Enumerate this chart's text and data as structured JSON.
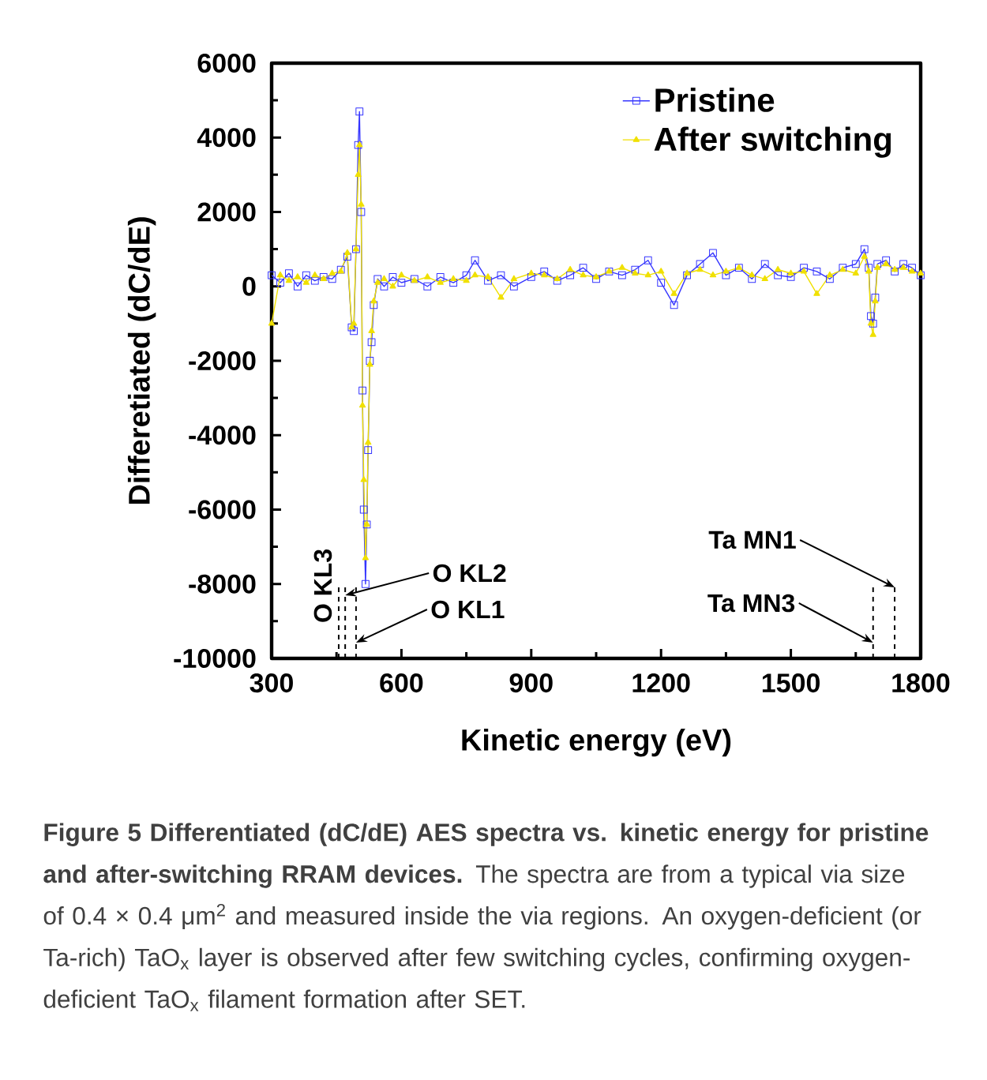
{
  "chart_data": {
    "type": "line",
    "xlabel": "Kinetic energy (eV)",
    "ylabel": "Differetiated (dC/dE)",
    "xlim": [
      300,
      1800
    ],
    "xticks": [
      300,
      600,
      900,
      1200,
      1500,
      1800
    ],
    "ylim": [
      -10000,
      6000
    ],
    "yticks": [
      -10000,
      -8000,
      -6000,
      -4000,
      -2000,
      0,
      2000,
      4000,
      6000
    ],
    "grid": false,
    "legend": "top right",
    "series": [
      {
        "name": "Pristine",
        "color": "#3535ff",
        "marker": "square",
        "x": [
          300,
          320,
          340,
          360,
          380,
          400,
          420,
          440,
          460,
          475,
          485,
          490,
          495,
          500,
          503,
          507,
          510,
          513,
          517,
          520,
          523,
          527,
          531,
          536,
          545,
          560,
          580,
          600,
          630,
          660,
          690,
          720,
          750,
          770,
          800,
          830,
          860,
          900,
          930,
          960,
          990,
          1020,
          1050,
          1080,
          1110,
          1140,
          1170,
          1200,
          1230,
          1260,
          1290,
          1320,
          1350,
          1380,
          1410,
          1440,
          1470,
          1500,
          1530,
          1560,
          1590,
          1620,
          1650,
          1670,
          1680,
          1685,
          1690,
          1695,
          1700,
          1720,
          1740,
          1760,
          1780,
          1800
        ],
        "values": [
          300,
          100,
          350,
          0,
          300,
          150,
          250,
          200,
          450,
          800,
          -1100,
          -1200,
          1000,
          3800,
          4700,
          2000,
          -2800,
          -6000,
          -8000,
          -6400,
          -4400,
          -2000,
          -1500,
          -500,
          200,
          0,
          250,
          100,
          200,
          0,
          250,
          100,
          300,
          700,
          150,
          300,
          0,
          250,
          400,
          150,
          300,
          500,
          200,
          400,
          300,
          450,
          700,
          100,
          -500,
          300,
          600,
          900,
          300,
          500,
          200,
          600,
          300,
          250,
          500,
          400,
          200,
          500,
          600,
          1000,
          500,
          -800,
          -1000,
          -300,
          600,
          700,
          400,
          600,
          500,
          300
        ]
      },
      {
        "name": "After switching",
        "color": "#f0e000",
        "marker": "triangle",
        "x": [
          300,
          320,
          340,
          360,
          380,
          400,
          420,
          440,
          460,
          475,
          485,
          490,
          495,
          500,
          503,
          507,
          510,
          513,
          517,
          520,
          523,
          527,
          531,
          536,
          545,
          560,
          580,
          600,
          630,
          660,
          690,
          720,
          750,
          770,
          800,
          830,
          860,
          900,
          930,
          960,
          990,
          1020,
          1050,
          1080,
          1110,
          1140,
          1170,
          1200,
          1230,
          1260,
          1290,
          1320,
          1350,
          1380,
          1410,
          1440,
          1470,
          1500,
          1530,
          1560,
          1590,
          1620,
          1650,
          1670,
          1680,
          1685,
          1690,
          1695,
          1700,
          1720,
          1740,
          1760,
          1780,
          1800
        ],
        "values": [
          -1000,
          300,
          150,
          250,
          100,
          300,
          200,
          350,
          400,
          900,
          -1100,
          -1000,
          1000,
          3000,
          3800,
          2200,
          -3200,
          -5200,
          -7300,
          -6400,
          -4200,
          -2100,
          -1200,
          -400,
          100,
          200,
          0,
          300,
          150,
          250,
          100,
          200,
          150,
          300,
          250,
          -300,
          200,
          350,
          300,
          200,
          450,
          300,
          250,
          400,
          500,
          350,
          300,
          400,
          -200,
          350,
          450,
          300,
          400,
          500,
          300,
          200,
          450,
          350,
          400,
          -200,
          300,
          450,
          350,
          800,
          400,
          -1000,
          -1300,
          -400,
          500,
          600,
          450,
          500,
          400,
          350
        ]
      }
    ],
    "ref_lines": [
      {
        "axis": "x",
        "value": 455,
        "label": "O KL3",
        "color": "#000000",
        "line_style": "dashed"
      },
      {
        "axis": "x",
        "value": 470,
        "label": "O KL2",
        "color": "#000000",
        "line_style": "dashed"
      },
      {
        "axis": "x",
        "value": 495,
        "label": "O KL1",
        "color": "#000000",
        "line_style": "dashed"
      },
      {
        "axis": "x",
        "value": 1690,
        "label": "Ta MN3",
        "color": "#000000",
        "line_style": "dashed"
      },
      {
        "axis": "x",
        "value": 1740,
        "label": "Ta MN1",
        "color": "#000000",
        "line_style": "dashed"
      }
    ],
    "annotations": [
      "**Figure 5 Differentiated (dC/dE) AES spectra vs. kinetic energy for pristine and after-switching RRAM devices.** The spectra are from a typical via size of 0.4 × 0.4 μm$^{2}$ and measured inside the via regions. An oxygen-deficient (or Ta-rich) TaO$_{x}$ layer is observed after few switching cycles, confirming oxygen-deficient TaO$_{x}$ filament formation after SET."
    ]
  }
}
